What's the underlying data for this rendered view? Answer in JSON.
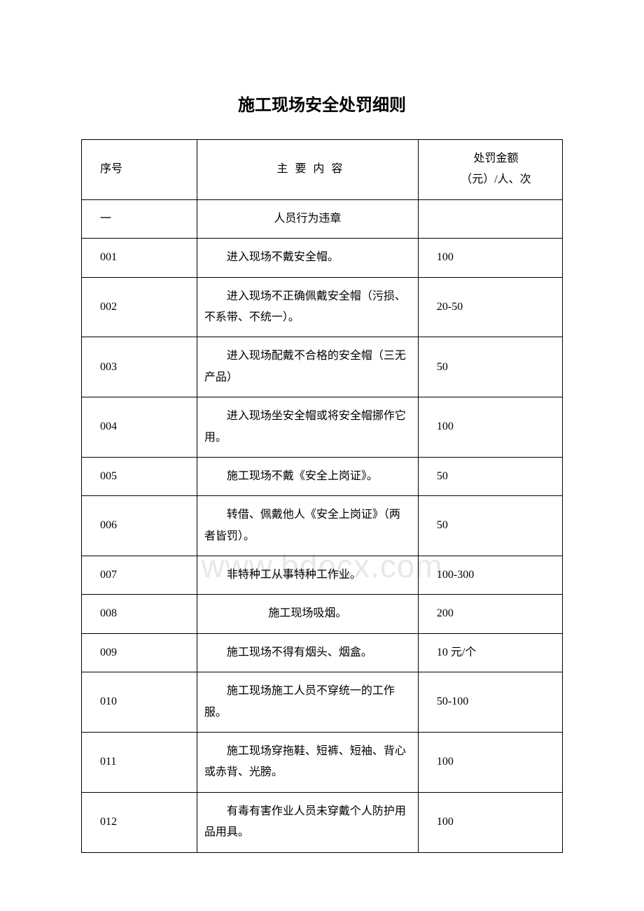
{
  "title": "施工现场安全处罚细则",
  "watermark": "www.bdocx.com",
  "header": {
    "seq": "序号",
    "content": "主要内容",
    "penalty_l1": "处罚金额",
    "penalty_l2": "（元）/人、次"
  },
  "section": {
    "seq": "一",
    "content": "人员行为违章"
  },
  "rows": [
    {
      "seq": "001",
      "content": "进入现场不戴安全帽。",
      "penalty": "100"
    },
    {
      "seq": "002",
      "content": "进入现场不正确佩戴安全帽（污损、不系带、不统一）。",
      "penalty": "20-50"
    },
    {
      "seq": "003",
      "content": "进入现场配戴不合格的安全帽（三无产品）",
      "penalty": "50"
    },
    {
      "seq": "004",
      "content": "进入现场坐安全帽或将安全帽挪作它用。",
      "penalty": "100"
    },
    {
      "seq": "005",
      "content": "施工现场不戴《安全上岗证》。",
      "penalty": "50"
    },
    {
      "seq": "006",
      "content": "转借、佩戴他人《安全上岗证》（两者皆罚）。",
      "penalty": "50"
    },
    {
      "seq": "007",
      "content": "非特种工从事特种工作业。",
      "penalty": "100-300"
    },
    {
      "seq": "008",
      "content": "施工现场吸烟。",
      "penalty": "200"
    },
    {
      "seq": "009",
      "content": "施工现场不得有烟头、烟盒。",
      "penalty": "10 元/个"
    },
    {
      "seq": "010",
      "content": "施工现场施工人员不穿统一的工作服。",
      "penalty": "50-100"
    },
    {
      "seq": "011",
      "content": "施工现场穿拖鞋、短裤、短袖、背心或赤背、光膀。",
      "penalty": "100"
    },
    {
      "seq": "012",
      "content": "有毒有害作业人员未穿戴个人防护用品用具。",
      "penalty": "100"
    }
  ]
}
